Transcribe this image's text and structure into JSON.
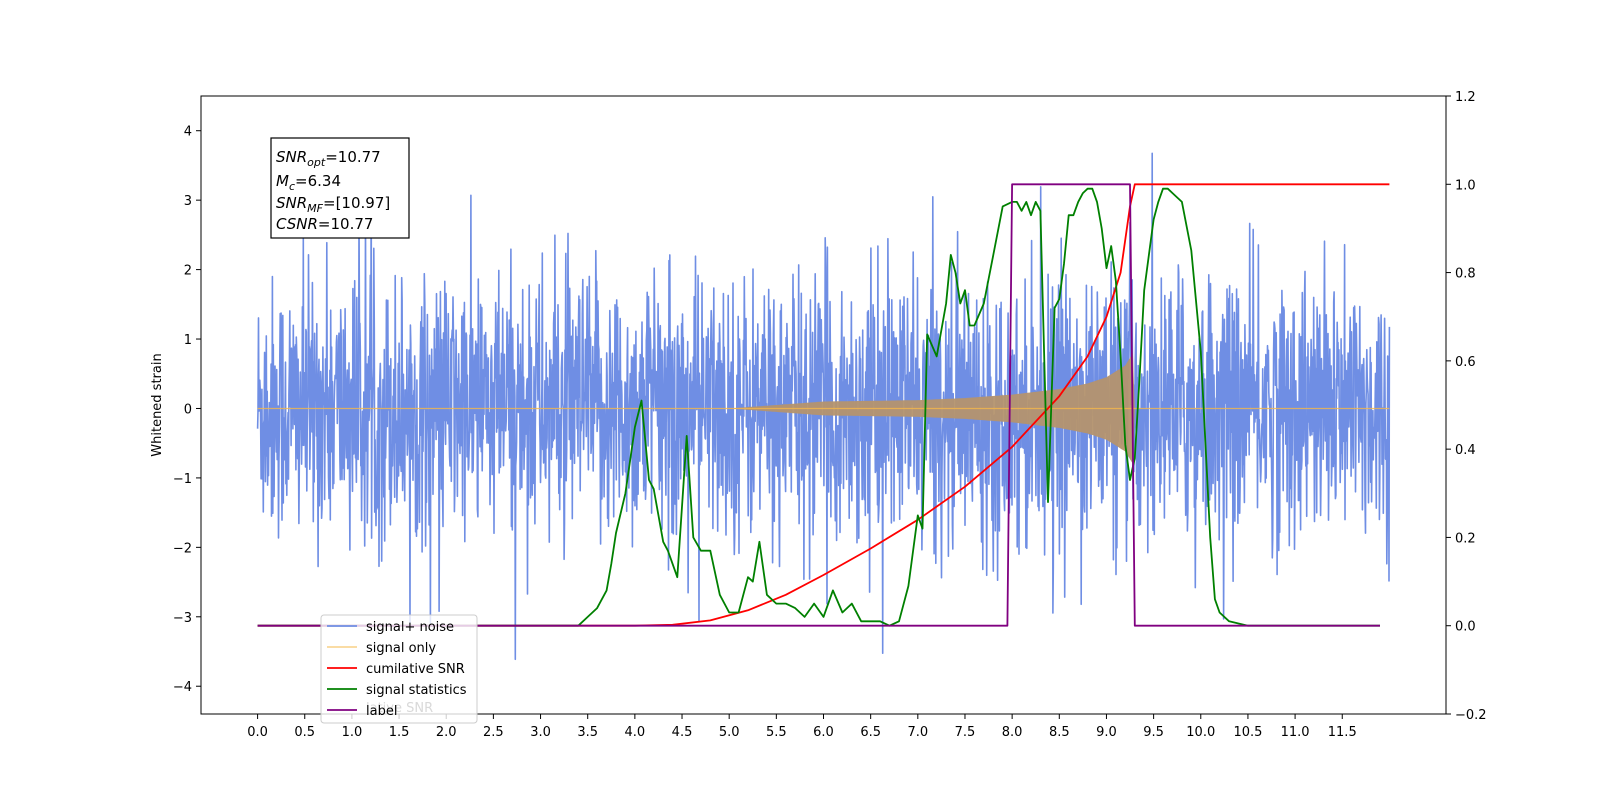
{
  "chart_data": {
    "type": "line",
    "title": "",
    "xlabel": "",
    "ylabel": "Whitened strain",
    "xlim": [
      -0.6,
      12.6
    ],
    "ylim": [
      -4.4,
      4.5
    ],
    "ylim_right": [
      -0.2,
      1.2
    ],
    "x_ticks": [
      "0.0",
      "0.5",
      "1.0",
      "1.5",
      "2.0",
      "2.5",
      "3.0",
      "3.5",
      "4.0",
      "4.5",
      "5.0",
      "5.5",
      "6.0",
      "6.5",
      "7.0",
      "7.5",
      "8.0",
      "8.5",
      "9.0",
      "9.5",
      "10.0",
      "10.5",
      "11.0",
      "11.5"
    ],
    "y_ticks_left": [
      "−4",
      "−3",
      "−2",
      "−1",
      "0",
      "1",
      "2",
      "3",
      "4"
    ],
    "y_ticks_right": [
      "−0.2",
      "0.0",
      "0.2",
      "0.4",
      "0.6",
      "0.8",
      "1.0",
      "1.2"
    ],
    "grid": false,
    "legend_position": "lower-left",
    "colors": {
      "signal_noise": "#6f8ee4",
      "signal_only": "#f5b84a",
      "signal_band": "#b4946e",
      "cumulative_snr": "#ff0000",
      "signal_statistics": "#008000",
      "label": "#800080"
    },
    "stats_box": {
      "snr_opt_main": "SNR",
      "snr_opt_sub": "opt",
      "snr_opt_value": "=10.77",
      "mc_main": "M",
      "mc_sub": "c",
      "mc_value": "=6.34",
      "snr_mf_main": "SNR",
      "snr_mf_sub": "MF",
      "snr_mf_value": "=[10.97]",
      "csnr_main": "CSNR",
      "csnr_value": "=10.77"
    },
    "legend": [
      {
        "key": "signal_noise",
        "label": "signal+ noise"
      },
      {
        "key": "signal_only",
        "label": "signal only"
      },
      {
        "key": "cumulative_snr",
        "label": "cumilative SNR"
      },
      {
        "key": "signal_statistics",
        "label": "signal statistics"
      },
      {
        "key": "label",
        "label": "label"
      }
    ],
    "legend_ghost_text": "lative SNR",
    "series": [
      {
        "key": "signal_noise",
        "axis": "left",
        "x_range": [
          0,
          12.0
        ],
        "amplitude_typical": 1.5,
        "max": 4.1,
        "min": -3.9
      },
      {
        "key": "signal_only",
        "axis": "left",
        "envelope": {
          "x": [
            0,
            5.0,
            6.0,
            7.0,
            7.5,
            8.0,
            8.5,
            8.8,
            9.0,
            9.2,
            9.28,
            9.3,
            12.0
          ],
          "amp": [
            0,
            0.0,
            0.1,
            0.12,
            0.15,
            0.2,
            0.28,
            0.36,
            0.45,
            0.62,
            0.8,
            0.0,
            0.0
          ]
        }
      },
      {
        "key": "cumulative_snr",
        "axis": "right",
        "x": [
          0,
          4.0,
          4.4,
          4.8,
          5.2,
          5.6,
          6.0,
          6.5,
          7.0,
          7.5,
          8.0,
          8.5,
          8.8,
          9.0,
          9.15,
          9.25,
          9.3,
          12.0
        ],
        "y": [
          0,
          0,
          0.002,
          0.012,
          0.035,
          0.07,
          0.115,
          0.175,
          0.24,
          0.315,
          0.405,
          0.52,
          0.61,
          0.7,
          0.8,
          0.95,
          1.0,
          1.0
        ]
      },
      {
        "key": "signal_statistics",
        "axis": "right",
        "x": [
          0,
          3.4,
          3.5,
          3.6,
          3.7,
          3.75,
          3.8,
          3.9,
          4.0,
          4.07,
          4.15,
          4.2,
          4.3,
          4.35,
          4.45,
          4.55,
          4.62,
          4.7,
          4.8,
          4.9,
          5.0,
          5.1,
          5.2,
          5.25,
          5.32,
          5.4,
          5.5,
          5.6,
          5.7,
          5.8,
          5.9,
          6.0,
          6.1,
          6.2,
          6.3,
          6.4,
          6.5,
          6.6,
          6.7,
          6.8,
          6.9,
          7.0,
          7.05,
          7.1,
          7.2,
          7.3,
          7.35,
          7.4,
          7.45,
          7.5,
          7.55,
          7.6,
          7.7,
          7.8,
          7.9,
          8.0,
          8.05,
          8.1,
          8.15,
          8.2,
          8.25,
          8.3,
          8.38,
          8.45,
          8.5,
          8.55,
          8.6,
          8.65,
          8.7,
          8.75,
          8.8,
          8.85,
          8.9,
          8.95,
          9.0,
          9.05,
          9.1,
          9.15,
          9.2,
          9.25,
          9.3,
          9.35,
          9.4,
          9.5,
          9.55,
          9.6,
          9.65,
          9.7,
          9.8,
          9.9,
          10.0,
          10.1,
          10.15,
          10.2,
          10.3,
          10.5,
          11.5,
          11.9
        ],
        "y": [
          0,
          0.0,
          0.02,
          0.04,
          0.08,
          0.14,
          0.21,
          0.3,
          0.45,
          0.51,
          0.33,
          0.31,
          0.19,
          0.17,
          0.11,
          0.43,
          0.2,
          0.17,
          0.17,
          0.07,
          0.03,
          0.03,
          0.11,
          0.1,
          0.19,
          0.07,
          0.05,
          0.05,
          0.04,
          0.02,
          0.05,
          0.02,
          0.08,
          0.03,
          0.05,
          0.01,
          0.01,
          0.01,
          0.0,
          0.01,
          0.09,
          0.25,
          0.22,
          0.66,
          0.61,
          0.73,
          0.84,
          0.8,
          0.73,
          0.76,
          0.68,
          0.68,
          0.73,
          0.84,
          0.95,
          0.96,
          0.96,
          0.94,
          0.96,
          0.93,
          0.96,
          0.94,
          0.28,
          0.72,
          0.74,
          0.82,
          0.93,
          0.93,
          0.96,
          0.98,
          0.99,
          0.99,
          0.96,
          0.9,
          0.81,
          0.86,
          0.78,
          0.61,
          0.41,
          0.33,
          0.38,
          0.56,
          0.76,
          0.92,
          0.96,
          0.99,
          0.99,
          0.98,
          0.96,
          0.85,
          0.62,
          0.2,
          0.06,
          0.03,
          0.01,
          0.0,
          0.0,
          0.0
        ]
      },
      {
        "key": "label",
        "axis": "right",
        "x": [
          0,
          7.95,
          8.0,
          9.25,
          9.3,
          11.9
        ],
        "y": [
          0,
          0,
          1,
          1,
          0,
          0
        ]
      }
    ]
  }
}
